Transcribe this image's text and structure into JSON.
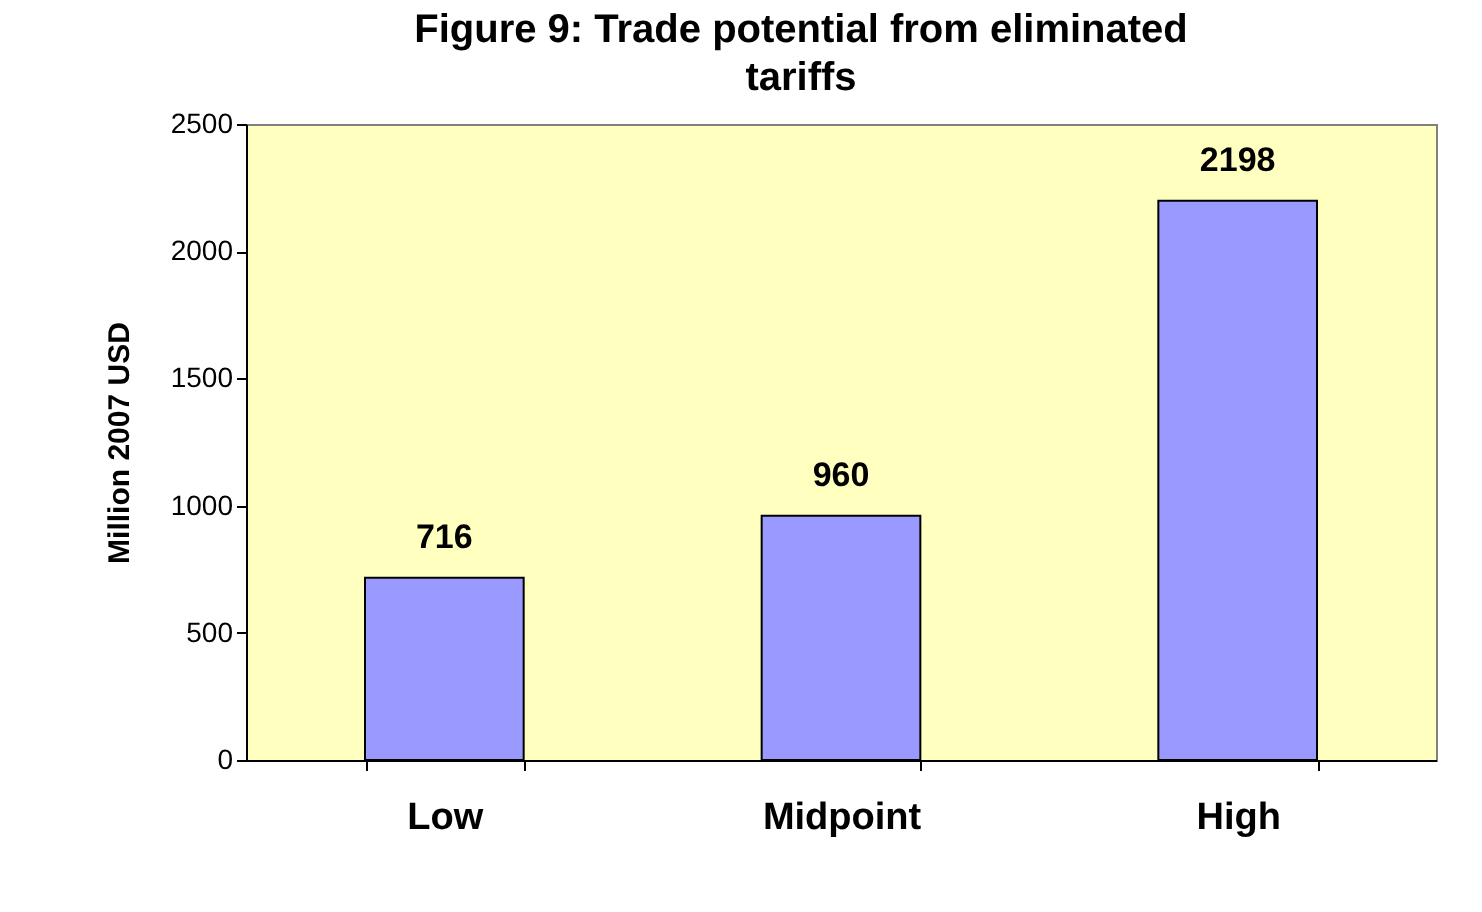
{
  "chart_data": {
    "type": "bar",
    "title": "Figure 9: Trade potential from eliminated tariffs",
    "ylabel": "Million 2007 USD",
    "categories": [
      "Low",
      "Midpoint",
      "High"
    ],
    "values": [
      716,
      960,
      2198
    ],
    "color": "#9999ff",
    "ylim": [
      0,
      2500
    ],
    "yticks": [
      0,
      500,
      1000,
      1500,
      2000,
      2500
    ],
    "data_labels": true
  }
}
